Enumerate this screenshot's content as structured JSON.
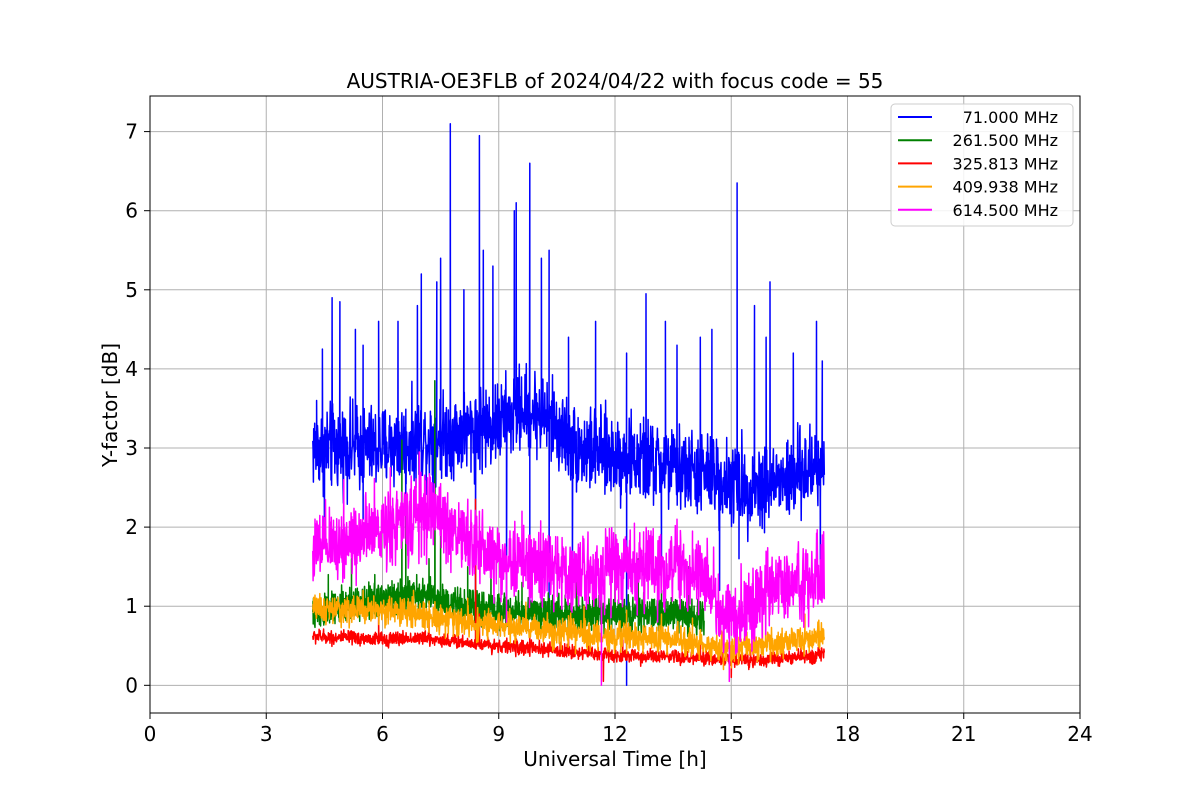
{
  "chart_data": {
    "type": "line",
    "title": "AUSTRIA-OE3FLB of 2024/04/22 with focus code = 55",
    "xlabel": "Universal Time [h]",
    "ylabel": "Y-factor [dB]",
    "xlim": [
      0,
      24
    ],
    "ylim": [
      -0.35,
      7.45
    ],
    "xticks": [
      "0",
      "3",
      "6",
      "9",
      "12",
      "15",
      "18",
      "21",
      "24"
    ],
    "yticks": [
      "0",
      "1",
      "2",
      "3",
      "4",
      "5",
      "6",
      "7"
    ],
    "grid": true,
    "legend_position": "top-right",
    "series": [
      {
        "name": "71.000 MHz",
        "color": "#0000ff",
        "noise": 0.35,
        "points": [
          [
            4.2,
            3.0
          ],
          [
            5.0,
            3.0
          ],
          [
            6.0,
            3.0
          ],
          [
            7.0,
            3.1
          ],
          [
            8.0,
            3.2
          ],
          [
            9.0,
            3.3
          ],
          [
            9.6,
            3.5
          ],
          [
            10.2,
            3.4
          ],
          [
            11.0,
            3.0
          ],
          [
            12.0,
            2.9
          ],
          [
            13.0,
            2.8
          ],
          [
            14.0,
            2.7
          ],
          [
            14.8,
            2.6
          ],
          [
            15.5,
            2.5
          ],
          [
            16.5,
            2.6
          ],
          [
            17.4,
            2.8
          ]
        ],
        "spikes": [
          [
            4.3,
            3.6
          ],
          [
            4.45,
            4.25
          ],
          [
            4.7,
            4.9
          ],
          [
            4.9,
            4.85
          ],
          [
            5.3,
            4.5
          ],
          [
            5.5,
            4.3
          ],
          [
            5.9,
            4.6
          ],
          [
            6.4,
            4.6
          ],
          [
            6.9,
            4.8
          ],
          [
            7.0,
            5.2
          ],
          [
            7.4,
            5.1
          ],
          [
            7.5,
            5.4
          ],
          [
            7.75,
            7.1
          ],
          [
            8.1,
            5.0
          ],
          [
            8.5,
            6.95
          ],
          [
            8.6,
            5.5
          ],
          [
            8.85,
            5.3
          ],
          [
            9.4,
            6.0
          ],
          [
            9.45,
            6.1
          ],
          [
            9.8,
            6.6
          ],
          [
            10.1,
            5.4
          ],
          [
            10.3,
            5.5
          ],
          [
            10.8,
            4.4
          ],
          [
            11.5,
            4.6
          ],
          [
            12.3,
            4.2
          ],
          [
            12.8,
            4.95
          ],
          [
            13.3,
            4.6
          ],
          [
            13.6,
            4.3
          ],
          [
            14.2,
            4.4
          ],
          [
            14.5,
            4.5
          ],
          [
            15.15,
            6.35
          ],
          [
            15.6,
            4.8
          ],
          [
            15.9,
            4.4
          ],
          [
            16.0,
            5.1
          ],
          [
            16.6,
            4.2
          ],
          [
            17.2,
            4.6
          ],
          [
            17.35,
            4.1
          ]
        ],
        "dips": [
          [
            4.5,
            1.9
          ],
          [
            5.5,
            2.1
          ],
          [
            6.6,
            2.0
          ],
          [
            7.3,
            2.1
          ],
          [
            8.4,
            1.2
          ],
          [
            9.2,
            1.1
          ],
          [
            9.8,
            0.9
          ],
          [
            10.3,
            1.0
          ],
          [
            10.9,
            1.3
          ],
          [
            12.3,
            0.0
          ],
          [
            13.2,
            1.6
          ],
          [
            14.7,
            1.2
          ],
          [
            15.2,
            1.6
          ],
          [
            17.3,
            1.5
          ]
        ]
      },
      {
        "name": "261.500 MHz",
        "color": "#008000",
        "noise": 0.14,
        "points": [
          [
            4.2,
            0.9
          ],
          [
            5.0,
            1.0
          ],
          [
            6.0,
            1.1
          ],
          [
            7.0,
            1.15
          ],
          [
            8.0,
            1.0
          ],
          [
            9.0,
            0.95
          ],
          [
            10.0,
            0.9
          ],
          [
            11.0,
            0.9
          ],
          [
            12.0,
            0.9
          ],
          [
            13.0,
            0.9
          ],
          [
            14.0,
            0.9
          ],
          [
            14.3,
            0.85
          ]
        ],
        "spikes": [
          [
            4.6,
            1.4
          ],
          [
            5.2,
            1.6
          ],
          [
            5.8,
            1.4
          ],
          [
            6.5,
            3.1
          ],
          [
            6.6,
            2.2
          ],
          [
            7.2,
            1.6
          ],
          [
            7.35,
            3.85
          ],
          [
            7.5,
            1.9
          ],
          [
            8.2,
            1.5
          ],
          [
            8.8,
            1.5
          ],
          [
            9.6,
            1.3
          ],
          [
            10.1,
            1.5
          ],
          [
            11.0,
            1.5
          ],
          [
            12.0,
            1.5
          ],
          [
            12.6,
            1.6
          ],
          [
            13.2,
            1.2
          ],
          [
            13.9,
            1.5
          ]
        ],
        "dips": []
      },
      {
        "name": "325.813 MHz",
        "color": "#ff0000",
        "noise": 0.06,
        "points": [
          [
            4.2,
            0.62
          ],
          [
            5.0,
            0.6
          ],
          [
            6.0,
            0.58
          ],
          [
            7.0,
            0.6
          ],
          [
            8.0,
            0.55
          ],
          [
            9.0,
            0.5
          ],
          [
            10.0,
            0.46
          ],
          [
            11.0,
            0.42
          ],
          [
            12.0,
            0.38
          ],
          [
            13.0,
            0.36
          ],
          [
            14.0,
            0.34
          ],
          [
            15.0,
            0.32
          ],
          [
            16.0,
            0.33
          ],
          [
            17.0,
            0.36
          ],
          [
            17.4,
            0.42
          ]
        ],
        "spikes": [
          [
            5.9,
            0.85
          ],
          [
            7.2,
            0.9
          ],
          [
            8.4,
            2.35
          ],
          [
            8.5,
            0.9
          ],
          [
            9.8,
            0.7
          ],
          [
            10.8,
            0.65
          ],
          [
            12.2,
            0.6
          ],
          [
            14.2,
            0.55
          ],
          [
            15.5,
            0.5
          ],
          [
            16.8,
            0.55
          ]
        ],
        "dips": [
          [
            11.7,
            0.05
          ],
          [
            15.0,
            0.1
          ]
        ]
      },
      {
        "name": "409.938 MHz",
        "color": "#ffa500",
        "noise": 0.12,
        "points": [
          [
            4.2,
            0.95
          ],
          [
            5.0,
            0.95
          ],
          [
            6.0,
            0.95
          ],
          [
            7.0,
            0.9
          ],
          [
            8.0,
            0.8
          ],
          [
            9.0,
            0.75
          ],
          [
            10.0,
            0.72
          ],
          [
            11.0,
            0.65
          ],
          [
            12.0,
            0.62
          ],
          [
            13.0,
            0.6
          ],
          [
            14.0,
            0.55
          ],
          [
            15.0,
            0.45
          ],
          [
            15.6,
            0.5
          ],
          [
            16.5,
            0.55
          ],
          [
            17.4,
            0.6
          ]
        ],
        "spikes": [
          [
            4.3,
            1.1
          ],
          [
            5.5,
            1.2
          ],
          [
            6.8,
            1.2
          ],
          [
            8.2,
            1.1
          ],
          [
            9.7,
            1.05
          ],
          [
            11.2,
            1.0
          ],
          [
            12.3,
            0.95
          ],
          [
            13.2,
            0.9
          ],
          [
            14.0,
            0.85
          ],
          [
            15.8,
            0.85
          ],
          [
            16.9,
            0.9
          ]
        ],
        "dips": [
          [
            14.8,
            0.2
          ],
          [
            15.0,
            0.22
          ]
        ]
      },
      {
        "name": "614.500 MHz",
        "color": "#ff00ff",
        "noise": 0.32,
        "points": [
          [
            4.2,
            1.7
          ],
          [
            5.0,
            1.8
          ],
          [
            6.0,
            2.0
          ],
          [
            6.7,
            2.1
          ],
          [
            7.3,
            2.2
          ],
          [
            8.0,
            1.9
          ],
          [
            9.0,
            1.6
          ],
          [
            10.0,
            1.5
          ],
          [
            11.0,
            1.4
          ],
          [
            12.0,
            1.5
          ],
          [
            13.0,
            1.5
          ],
          [
            14.0,
            1.4
          ],
          [
            14.5,
            1.3
          ],
          [
            14.8,
            0.8
          ],
          [
            15.2,
            0.9
          ],
          [
            16.0,
            1.2
          ],
          [
            17.0,
            1.3
          ],
          [
            17.4,
            1.5
          ]
        ],
        "spikes": [
          [
            5.0,
            2.6
          ],
          [
            6.2,
            2.75
          ],
          [
            6.95,
            2.95
          ],
          [
            7.5,
            2.55
          ],
          [
            8.5,
            2.2
          ],
          [
            9.6,
            2.2
          ],
          [
            12.5,
            2.05
          ],
          [
            13.6,
            2.1
          ],
          [
            14.0,
            1.95
          ],
          [
            17.35,
            1.9
          ]
        ],
        "dips": [
          [
            11.65,
            0.0
          ],
          [
            14.95,
            0.05
          ],
          [
            9.2,
            0.8
          ],
          [
            13.1,
            0.8
          ]
        ]
      }
    ]
  }
}
